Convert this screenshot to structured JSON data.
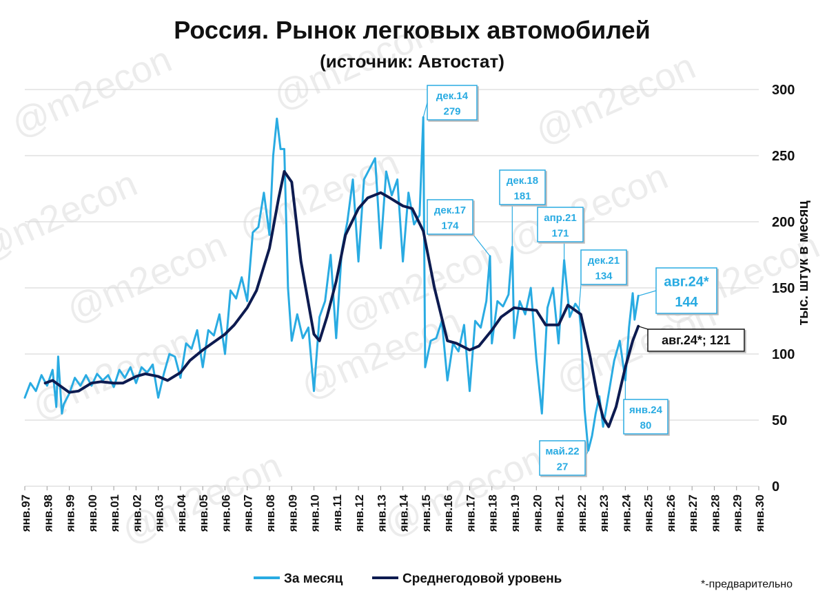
{
  "chart_data": {
    "type": "line",
    "title": "Россия. Рынок легковых автомобилей",
    "subtitle": "(источник: Автостат)",
    "ylabel": "тыс. штук в месяц",
    "ylim": [
      0,
      300
    ],
    "yticks": [
      0,
      50,
      100,
      150,
      200,
      250,
      300
    ],
    "y_axis_side": "right",
    "grid": true,
    "x_range": [
      "1997-01",
      "2030-01"
    ],
    "x_tick_labels": [
      "янв.97",
      "янв.98",
      "янв.99",
      "янв.00",
      "янв.01",
      "янв.02",
      "янв.03",
      "янв.04",
      "янв.05",
      "янв.06",
      "янв.07",
      "янв.08",
      "янв.09",
      "янв.10",
      "янв.11",
      "янв.12",
      "янв.13",
      "янв.14",
      "янв.15",
      "янв.16",
      "янв.17",
      "янв.18",
      "янв.19",
      "янв.20",
      "янв.21",
      "янв.22",
      "янв.23",
      "янв.24",
      "янв.25",
      "янв.26",
      "янв.27",
      "янв.28",
      "янв.29",
      "янв.30"
    ],
    "legend_position": "bottom",
    "series": [
      {
        "name": "За месяц",
        "color": "#29abe2",
        "points": [
          [
            "1997-01",
            67
          ],
          [
            "1997-04",
            78
          ],
          [
            "1997-07",
            72
          ],
          [
            "1997-10",
            84
          ],
          [
            "1998-01",
            76
          ],
          [
            "1998-04",
            88
          ],
          [
            "1998-06",
            60
          ],
          [
            "1998-07",
            98
          ],
          [
            "1998-09",
            55
          ],
          [
            "1998-10",
            62
          ],
          [
            "1999-01",
            70
          ],
          [
            "1999-04",
            82
          ],
          [
            "1999-07",
            76
          ],
          [
            "1999-10",
            84
          ],
          [
            "2000-01",
            76
          ],
          [
            "2000-04",
            85
          ],
          [
            "2000-07",
            80
          ],
          [
            "2000-10",
            84
          ],
          [
            "2001-01",
            75
          ],
          [
            "2001-04",
            88
          ],
          [
            "2001-07",
            82
          ],
          [
            "2001-10",
            90
          ],
          [
            "2002-01",
            78
          ],
          [
            "2002-04",
            90
          ],
          [
            "2002-07",
            86
          ],
          [
            "2002-10",
            92
          ],
          [
            "2003-01",
            67
          ],
          [
            "2003-04",
            85
          ],
          [
            "2003-07",
            100
          ],
          [
            "2003-10",
            98
          ],
          [
            "2004-01",
            82
          ],
          [
            "2004-04",
            108
          ],
          [
            "2004-07",
            104
          ],
          [
            "2004-10",
            118
          ],
          [
            "2005-01",
            90
          ],
          [
            "2005-04",
            118
          ],
          [
            "2005-07",
            114
          ],
          [
            "2005-10",
            130
          ],
          [
            "2006-01",
            100
          ],
          [
            "2006-04",
            148
          ],
          [
            "2006-07",
            142
          ],
          [
            "2006-10",
            158
          ],
          [
            "2007-01",
            140
          ],
          [
            "2007-04",
            192
          ],
          [
            "2007-07",
            196
          ],
          [
            "2007-10",
            222
          ],
          [
            "2008-01",
            190
          ],
          [
            "2008-03",
            250
          ],
          [
            "2008-05",
            278
          ],
          [
            "2008-07",
            255
          ],
          [
            "2008-09",
            255
          ],
          [
            "2008-11",
            150
          ],
          [
            "2009-01",
            110
          ],
          [
            "2009-04",
            130
          ],
          [
            "2009-07",
            112
          ],
          [
            "2009-10",
            120
          ],
          [
            "2010-01",
            72
          ],
          [
            "2010-04",
            128
          ],
          [
            "2010-07",
            140
          ],
          [
            "2010-10",
            175
          ],
          [
            "2011-01",
            112
          ],
          [
            "2011-04",
            178
          ],
          [
            "2011-07",
            200
          ],
          [
            "2011-10",
            232
          ],
          [
            "2012-01",
            170
          ],
          [
            "2012-04",
            232
          ],
          [
            "2012-07",
            240
          ],
          [
            "2012-10",
            248
          ],
          [
            "2013-01",
            180
          ],
          [
            "2013-04",
            238
          ],
          [
            "2013-07",
            220
          ],
          [
            "2013-10",
            232
          ],
          [
            "2014-01",
            170
          ],
          [
            "2014-04",
            222
          ],
          [
            "2014-07",
            198
          ],
          [
            "2014-10",
            205
          ],
          [
            "2014-12",
            279
          ],
          [
            "2015-01",
            90
          ],
          [
            "2015-04",
            110
          ],
          [
            "2015-07",
            112
          ],
          [
            "2015-10",
            125
          ],
          [
            "2016-01",
            80
          ],
          [
            "2016-04",
            108
          ],
          [
            "2016-07",
            102
          ],
          [
            "2016-10",
            122
          ],
          [
            "2017-01",
            72
          ],
          [
            "2017-04",
            125
          ],
          [
            "2017-07",
            120
          ],
          [
            "2017-10",
            140
          ],
          [
            "2017-12",
            174
          ],
          [
            "2018-01",
            108
          ],
          [
            "2018-04",
            140
          ],
          [
            "2018-07",
            136
          ],
          [
            "2018-10",
            145
          ],
          [
            "2018-12",
            181
          ],
          [
            "2019-01",
            112
          ],
          [
            "2019-04",
            140
          ],
          [
            "2019-07",
            130
          ],
          [
            "2019-10",
            150
          ],
          [
            "2020-01",
            96
          ],
          [
            "2020-04",
            55
          ],
          [
            "2020-07",
            135
          ],
          [
            "2020-10",
            150
          ],
          [
            "2021-01",
            108
          ],
          [
            "2021-04",
            171
          ],
          [
            "2021-07",
            128
          ],
          [
            "2021-10",
            138
          ],
          [
            "2021-12",
            134
          ],
          [
            "2022-01",
            120
          ],
          [
            "2022-03",
            58
          ],
          [
            "2022-05",
            27
          ],
          [
            "2022-07",
            38
          ],
          [
            "2022-09",
            55
          ],
          [
            "2022-11",
            68
          ],
          [
            "2023-01",
            45
          ],
          [
            "2023-04",
            70
          ],
          [
            "2023-07",
            95
          ],
          [
            "2023-10",
            110
          ],
          [
            "2024-01",
            80
          ],
          [
            "2024-03",
            120
          ],
          [
            "2024-05",
            146
          ],
          [
            "2024-06",
            126
          ],
          [
            "2024-08",
            144
          ]
        ]
      },
      {
        "name": "Среднегодовой уровень",
        "color": "#0d1b50",
        "points": [
          [
            "1997-12",
            78
          ],
          [
            "1998-04",
            80
          ],
          [
            "1998-08",
            76
          ],
          [
            "1999-01",
            71
          ],
          [
            "1999-06",
            72
          ],
          [
            "2000-01",
            78
          ],
          [
            "2000-06",
            79
          ],
          [
            "2001-01",
            78
          ],
          [
            "2001-06",
            78
          ],
          [
            "2002-01",
            83
          ],
          [
            "2002-06",
            85
          ],
          [
            "2003-01",
            83
          ],
          [
            "2003-06",
            80
          ],
          [
            "2004-01",
            86
          ],
          [
            "2004-06",
            95
          ],
          [
            "2005-01",
            103
          ],
          [
            "2005-06",
            108
          ],
          [
            "2006-01",
            115
          ],
          [
            "2006-06",
            122
          ],
          [
            "2007-01",
            135
          ],
          [
            "2007-06",
            148
          ],
          [
            "2008-01",
            180
          ],
          [
            "2008-06",
            218
          ],
          [
            "2008-09",
            238
          ],
          [
            "2009-01",
            230
          ],
          [
            "2009-06",
            170
          ],
          [
            "2010-01",
            115
          ],
          [
            "2010-04",
            110
          ],
          [
            "2010-08",
            128
          ],
          [
            "2011-01",
            155
          ],
          [
            "2011-06",
            190
          ],
          [
            "2012-01",
            210
          ],
          [
            "2012-06",
            218
          ],
          [
            "2013-01",
            222
          ],
          [
            "2013-06",
            218
          ],
          [
            "2014-01",
            212
          ],
          [
            "2014-06",
            210
          ],
          [
            "2014-12",
            193
          ],
          [
            "2015-06",
            150
          ],
          [
            "2016-01",
            110
          ],
          [
            "2016-06",
            108
          ],
          [
            "2017-01",
            103
          ],
          [
            "2017-06",
            106
          ],
          [
            "2018-01",
            118
          ],
          [
            "2018-06",
            128
          ],
          [
            "2019-01",
            135
          ],
          [
            "2019-06",
            134
          ],
          [
            "2020-01",
            133
          ],
          [
            "2020-06",
            122
          ],
          [
            "2021-01",
            122
          ],
          [
            "2021-06",
            137
          ],
          [
            "2022-01",
            130
          ],
          [
            "2022-06",
            98
          ],
          [
            "2022-10",
            68
          ],
          [
            "2023-01",
            52
          ],
          [
            "2023-04",
            45
          ],
          [
            "2023-08",
            60
          ],
          [
            "2024-01",
            90
          ],
          [
            "2024-05",
            110
          ],
          [
            "2024-08",
            121
          ]
        ]
      }
    ],
    "annotations": [
      {
        "date": "2014-12",
        "value": 279,
        "label": "дек.14",
        "value_label": "279",
        "series": 0
      },
      {
        "date": "2017-12",
        "value": 174,
        "label": "дек.17",
        "value_label": "174",
        "series": 0
      },
      {
        "date": "2018-12",
        "value": 181,
        "label": "дек.18",
        "value_label": "181",
        "series": 0
      },
      {
        "date": "2021-04",
        "value": 171,
        "label": "апр.21",
        "value_label": "171",
        "series": 0
      },
      {
        "date": "2021-12",
        "value": 134,
        "label": "дек.21",
        "value_label": "134",
        "series": 0
      },
      {
        "date": "2024-08",
        "value": 144,
        "label": "авг.24*",
        "value_label": "144",
        "series": 0
      },
      {
        "date": "2024-08",
        "value": 121,
        "label": "авг.24*; 121",
        "value_label": "",
        "series": 1
      },
      {
        "date": "2024-01",
        "value": 80,
        "label": "янв.24",
        "value_label": "80",
        "series": 0
      },
      {
        "date": "2022-05",
        "value": 27,
        "label": "май.22",
        "value_label": "27",
        "series": 0
      }
    ],
    "footnote": "*-предварительно",
    "watermark": "@m2econ"
  }
}
